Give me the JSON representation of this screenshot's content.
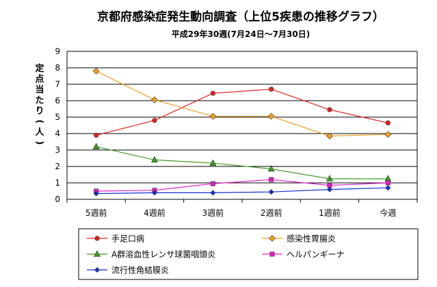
{
  "chart_data": {
    "type": "line",
    "title": "京都府感染症発生動向調査（上位5疾患の推移グラフ）",
    "subtitle": "平成29年30週(7月24日～7月30日)",
    "ylabel": "定点当たり(人)",
    "xlabel": "",
    "ylim": [
      0,
      9
    ],
    "yticks": [
      0,
      1,
      2,
      3,
      4,
      5,
      6,
      7,
      8,
      9
    ],
    "grid": true,
    "legend_position": "bottom",
    "categories": [
      "5週前",
      "4週前",
      "3週前",
      "2週前",
      "1週前",
      "今週"
    ],
    "series": [
      {
        "name": "手足口病",
        "color": "#e0201a",
        "marker": "circle",
        "values": [
          3.9,
          4.8,
          6.45,
          6.7,
          5.45,
          4.65
        ]
      },
      {
        "name": "感染性胃腸炎",
        "color": "#f0a020",
        "marker": "diamond",
        "values": [
          7.8,
          6.05,
          5.05,
          5.05,
          3.85,
          3.95
        ]
      },
      {
        "name": "A群溶血性レンサ球菌咽頭炎",
        "color": "#3a9a20",
        "marker": "triangle",
        "values": [
          3.2,
          2.4,
          2.2,
          1.85,
          1.25,
          1.25
        ]
      },
      {
        "name": "ヘルパンギーナ",
        "color": "#e020c8",
        "marker": "square",
        "values": [
          0.5,
          0.55,
          0.95,
          1.2,
          0.85,
          1.0
        ]
      },
      {
        "name": "流行性角結膜炎",
        "color": "#1030d0",
        "marker": "diamond-small",
        "values": [
          0.35,
          0.4,
          0.4,
          0.45,
          0.6,
          0.7
        ]
      }
    ]
  }
}
